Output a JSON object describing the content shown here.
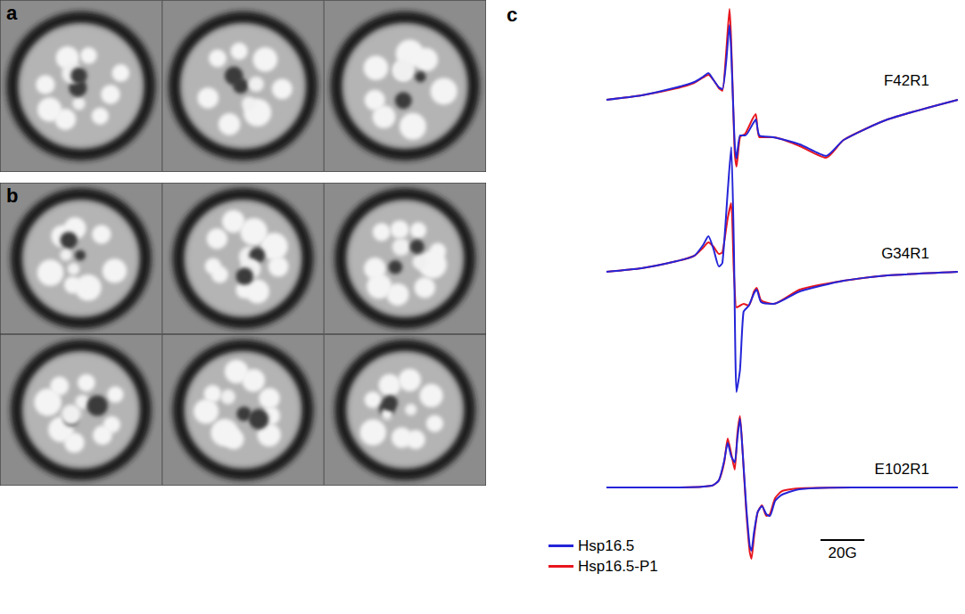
{
  "panel_labels": [
    "a",
    "b",
    "c"
  ],
  "scale_bar": {
    "value": 20,
    "label": "20G"
  },
  "chart_data": [
    {
      "type": "line",
      "title": "F42R1",
      "tick_labels": false,
      "xlim": [
        0,
        160
      ],
      "ylim": [
        -85,
        105
      ],
      "x": [
        0,
        16,
        32,
        40,
        44,
        46.4,
        48.8,
        51.2,
        52.8,
        54.4,
        56,
        58.4,
        59.2,
        60.8,
        63.2,
        66.4,
        68,
        69.6,
        76,
        88,
        100,
        108,
        128,
        160
      ],
      "series": [
        {
          "name": "Hsp16.5",
          "color": "#2424d8",
          "values": [
            0,
            5,
            14,
            20,
            26,
            30,
            22,
            14,
            12,
            40,
            84,
            -50,
            -66,
            -40,
            -40,
            -28,
            -22,
            -40,
            -42,
            -50,
            -63,
            -45,
            -22,
            0
          ]
        },
        {
          "name": "Hsp16.5-P1",
          "color": "#e8161e",
          "values": [
            0,
            5,
            13,
            19,
            25,
            28,
            22,
            13,
            10,
            50,
            102,
            -60,
            -75,
            -42,
            -38,
            -22,
            -16,
            -42,
            -42,
            -52,
            -65,
            -45,
            -22,
            0
          ]
        }
      ]
    },
    {
      "type": "line",
      "title": "G34R1",
      "tick_labels": false,
      "xlim": [
        0,
        160
      ],
      "ylim": [
        -145,
        150
      ],
      "x": [
        0,
        16,
        32,
        40,
        44,
        46.4,
        48.8,
        51.2,
        52.8,
        55.2,
        56.8,
        58,
        59.2,
        60.8,
        62.4,
        64.8,
        67.2,
        68.4,
        70.4,
        76,
        88,
        108,
        128,
        160
      ],
      "series": [
        {
          "name": "Hsp16.5",
          "color": "#2424d8",
          "values": [
            0,
            4,
            12,
            18,
            30,
            40,
            25,
            6,
            10,
            90,
            140,
            30,
            -135,
            -110,
            -45,
            -38,
            -24,
            -20,
            -34,
            -36,
            -22,
            -10,
            -4,
            0
          ]
        },
        {
          "name": "Hsp16.5-P1",
          "color": "#e8161e",
          "values": [
            0,
            4,
            12,
            18,
            27,
            33,
            28,
            20,
            22,
            60,
            77,
            0,
            -40,
            -38,
            -36,
            -38,
            -22,
            -18,
            -32,
            -36,
            -20,
            -10,
            -4,
            0
          ]
        }
      ]
    },
    {
      "type": "line",
      "title": "E102R1",
      "tick_labels": false,
      "legend": "lower left",
      "xlim": [
        0,
        160
      ],
      "ylim": [
        -90,
        90
      ],
      "x": [
        0,
        32,
        48,
        51.2,
        53.6,
        55.2,
        56.8,
        58.4,
        59.6,
        60.8,
        62,
        63.6,
        65.2,
        66,
        67.2,
        68.8,
        70.8,
        72.8,
        74.4,
        76.8,
        80,
        88,
        112,
        160
      ],
      "series": [
        {
          "name": "Hsp16.5",
          "color": "#2424d8",
          "values": [
            0,
            0,
            2,
            8,
            30,
            50,
            35,
            28,
            55,
            77,
            40,
            -20,
            -65,
            -71,
            -50,
            -28,
            -21,
            -30,
            -32,
            -15,
            -8,
            -2,
            0,
            0
          ]
        },
        {
          "name": "Hsp16.5-P1",
          "color": "#e8161e",
          "values": [
            0,
            0,
            2,
            8,
            28,
            55,
            38,
            20,
            60,
            80,
            40,
            -25,
            -72,
            -80,
            -55,
            -28,
            -20,
            -32,
            -30,
            -12,
            -4,
            -1,
            0,
            0
          ]
        }
      ]
    }
  ]
}
